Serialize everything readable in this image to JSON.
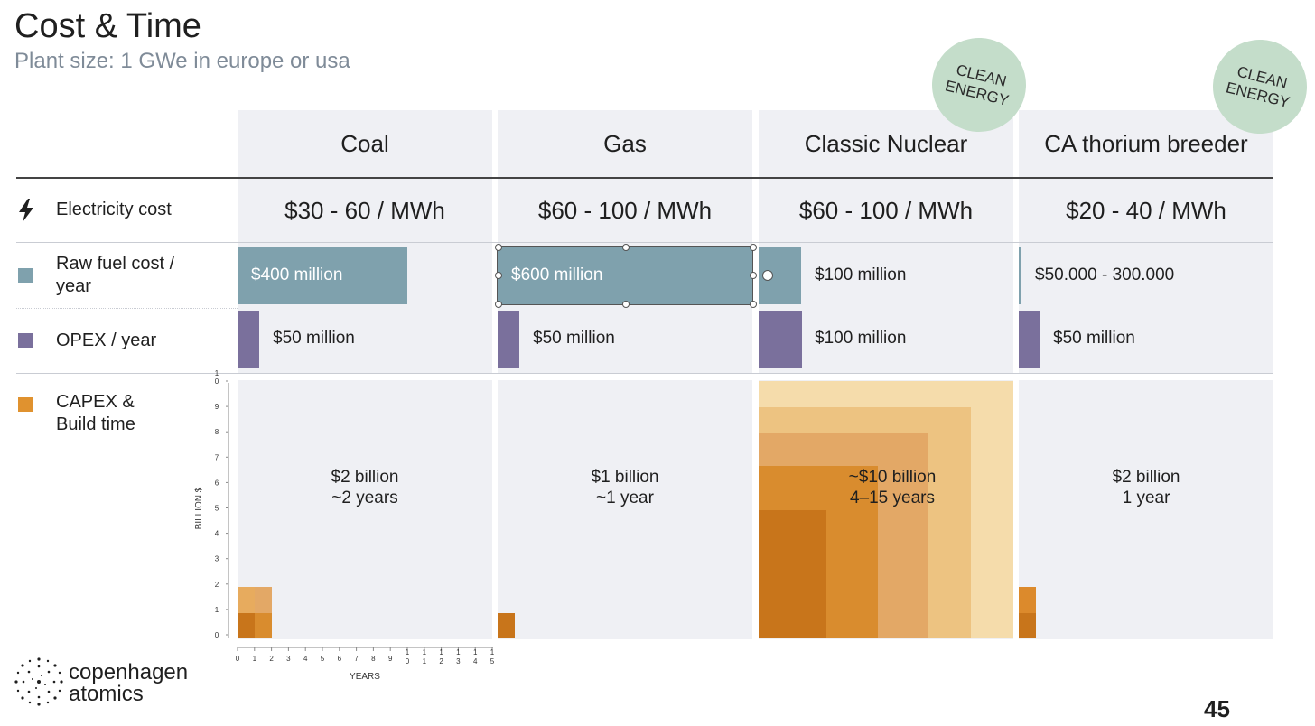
{
  "header": {
    "title": "Cost & Time",
    "subtitle": "Plant size: 1 GWe in europe or usa"
  },
  "badges": [
    "CLEAN ENERGY",
    "CLEAN ENERGY"
  ],
  "columns": [
    "Coal",
    "Gas",
    "Classic Nuclear",
    "CA thorium breeder"
  ],
  "row_labels": {
    "electricity": "Electricity cost",
    "fuel": "Raw fuel cost / year",
    "opex": "OPEX / year",
    "capex": "CAPEX & Build time"
  },
  "electricity_cost": [
    "$30 - 60 / MWh",
    "$60 - 100 / MWh",
    "$60 - 100 / MWh",
    "$20 - 40 / MWh"
  ],
  "fuel_cost_labels": [
    "$400 million",
    "$600 million",
    "$100 million",
    "$50.000 - 300.000"
  ],
  "opex_labels": [
    "$50 million",
    "$50 million",
    "$100 million",
    "$50 million"
  ],
  "capex_labels": [
    [
      "$2 billion",
      "~2 years"
    ],
    [
      "$1 billion",
      "~1 year"
    ],
    [
      "~$10 billion",
      "4–15 years"
    ],
    [
      "$2 billion",
      "1 year"
    ]
  ],
  "colors": {
    "fuel": "#7fa1ad",
    "opex": "#7a709c",
    "capex": "#e0922f",
    "column_bg": "#eff0f4",
    "badge": "#c4ddca"
  },
  "chart_data": [
    {
      "type": "bar",
      "title": "Raw fuel cost / year",
      "unit": "million $",
      "categories": [
        "Coal",
        "Gas",
        "Classic Nuclear",
        "CA thorium breeder"
      ],
      "values": [
        400,
        600,
        100,
        0.3
      ],
      "xlim": [
        0,
        600
      ]
    },
    {
      "type": "bar",
      "title": "OPEX / year",
      "unit": "million $",
      "categories": [
        "Coal",
        "Gas",
        "Classic Nuclear",
        "CA thorium breeder"
      ],
      "values": [
        50,
        50,
        100,
        50
      ],
      "xlim": [
        0,
        600
      ]
    },
    {
      "type": "area",
      "title": "CAPEX & Build time",
      "xlabel": "YEARS",
      "ylabel": "BILLION $",
      "xlim": [
        0,
        15
      ],
      "ylim": [
        0,
        10
      ],
      "xticks": [
        "0",
        "1",
        "2",
        "3",
        "4",
        "5",
        "6",
        "7",
        "8",
        "9",
        "10",
        "11",
        "12",
        "13",
        "14",
        "15"
      ],
      "yticks": [
        "0",
        "1",
        "2",
        "3",
        "4",
        "5",
        "6",
        "7",
        "8",
        "9",
        "10"
      ],
      "series": [
        {
          "name": "Coal",
          "blocks": [
            {
              "years": 2,
              "billion": 2
            },
            {
              "years": 1,
              "billion": 1
            }
          ]
        },
        {
          "name": "Gas",
          "blocks": [
            {
              "years": 1,
              "billion": 1
            }
          ]
        },
        {
          "name": "Classic Nuclear",
          "blocks": [
            {
              "years": 15,
              "billion": 10
            },
            {
              "years": 12.5,
              "billion": 9
            },
            {
              "years": 10,
              "billion": 8
            },
            {
              "years": 7,
              "billion": 6.7
            },
            {
              "years": 4,
              "billion": 5
            }
          ]
        },
        {
          "name": "CA thorium breeder",
          "blocks": [
            {
              "years": 1,
              "billion": 2
            },
            {
              "years": 1,
              "billion": 1
            }
          ]
        }
      ]
    }
  ],
  "logo": {
    "line1": "copenhagen",
    "line2": "atomics"
  },
  "page_number": "45"
}
